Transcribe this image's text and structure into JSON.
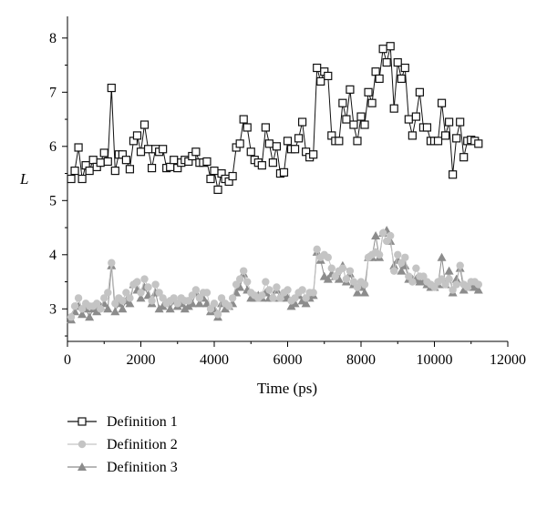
{
  "chart_data": {
    "type": "line",
    "xlabel": "Time (ps)",
    "ylabel": "L",
    "xlim": [
      0,
      12000
    ],
    "ylim": [
      2.4,
      8.4
    ],
    "xticks": [
      0,
      2000,
      4000,
      6000,
      8000,
      10000,
      12000
    ],
    "yticks": [
      3,
      4,
      5,
      6,
      7,
      8
    ],
    "grid": false,
    "legend_position": "bottom-left",
    "x": [
      100,
      200,
      300,
      400,
      500,
      600,
      700,
      800,
      900,
      1000,
      1100,
      1200,
      1300,
      1400,
      1500,
      1600,
      1700,
      1800,
      1900,
      2000,
      2100,
      2200,
      2300,
      2400,
      2500,
      2600,
      2700,
      2800,
      2900,
      3000,
      3100,
      3200,
      3300,
      3400,
      3500,
      3600,
      3700,
      3800,
      3900,
      4000,
      4100,
      4200,
      4300,
      4400,
      4500,
      4600,
      4700,
      4800,
      4900,
      5000,
      5100,
      5200,
      5300,
      5400,
      5500,
      5600,
      5700,
      5800,
      5900,
      6000,
      6100,
      6200,
      6300,
      6400,
      6500,
      6600,
      6700,
      6800,
      6900,
      7000,
      7100,
      7200,
      7300,
      7400,
      7500,
      7600,
      7700,
      7800,
      7900,
      8000,
      8100,
      8200,
      8300,
      8400,
      8500,
      8600,
      8700,
      8800,
      8900,
      9000,
      9100,
      9200,
      9300,
      9400,
      9500,
      9600,
      9700,
      9800,
      9900,
      10000,
      10100,
      10200,
      10300,
      10400,
      10500,
      10600,
      10700,
      10800,
      10900,
      11000,
      11100,
      11200
    ],
    "series": [
      {
        "name": "Definition 1",
        "color": "#111111",
        "marker": "open-square",
        "values": [
          5.4,
          5.55,
          5.98,
          5.4,
          5.65,
          5.55,
          5.75,
          5.62,
          5.7,
          5.88,
          5.72,
          7.08,
          5.55,
          5.85,
          5.85,
          5.75,
          5.58,
          6.1,
          6.2,
          5.9,
          6.4,
          5.95,
          5.6,
          5.95,
          5.9,
          5.95,
          5.6,
          5.62,
          5.75,
          5.6,
          5.7,
          5.75,
          5.72,
          5.82,
          5.9,
          5.7,
          5.7,
          5.72,
          5.4,
          5.55,
          5.2,
          5.5,
          5.4,
          5.35,
          5.45,
          5.98,
          6.05,
          6.5,
          6.35,
          5.9,
          5.75,
          5.7,
          5.65,
          6.35,
          6.05,
          5.7,
          6.0,
          5.5,
          5.52,
          6.1,
          5.95,
          5.95,
          6.15,
          6.45,
          5.9,
          5.8,
          5.85,
          7.45,
          7.2,
          7.38,
          7.3,
          6.2,
          6.1,
          6.1,
          6.8,
          6.5,
          7.05,
          6.4,
          6.1,
          6.55,
          6.4,
          7.0,
          6.8,
          7.38,
          7.25,
          7.8,
          7.55,
          7.85,
          6.7,
          7.55,
          7.25,
          7.45,
          6.5,
          6.2,
          6.55,
          7.0,
          6.35,
          6.35,
          6.1,
          6.1,
          6.1,
          6.8,
          6.2,
          6.45,
          5.48,
          6.15,
          6.45,
          5.8,
          6.1,
          6.12,
          6.1,
          6.05
        ]
      },
      {
        "name": "Definition 2",
        "color": "#c4c4c4",
        "marker": "circle",
        "values": [
          2.85,
          3.05,
          3.2,
          3.0,
          3.1,
          3.05,
          3.05,
          3.1,
          3.0,
          3.2,
          3.3,
          3.85,
          3.1,
          3.2,
          3.15,
          3.3,
          3.2,
          3.45,
          3.5,
          3.3,
          3.55,
          3.4,
          3.15,
          3.45,
          3.3,
          3.2,
          3.1,
          3.15,
          3.2,
          3.1,
          3.2,
          3.15,
          3.15,
          3.25,
          3.35,
          3.2,
          3.3,
          3.3,
          3.0,
          3.1,
          2.9,
          3.2,
          3.1,
          3.05,
          3.2,
          3.45,
          3.55,
          3.7,
          3.5,
          3.3,
          3.25,
          3.2,
          3.25,
          3.5,
          3.35,
          3.2,
          3.4,
          3.2,
          3.3,
          3.35,
          3.15,
          3.2,
          3.3,
          3.35,
          3.2,
          3.3,
          3.3,
          4.1,
          3.95,
          4.0,
          3.95,
          3.75,
          3.6,
          3.7,
          3.75,
          3.55,
          3.7,
          3.5,
          3.4,
          3.5,
          3.45,
          3.95,
          4.0,
          4.05,
          4.0,
          4.4,
          4.25,
          4.35,
          3.7,
          4.0,
          3.85,
          3.95,
          3.6,
          3.5,
          3.75,
          3.6,
          3.6,
          3.5,
          3.45,
          3.4,
          3.5,
          3.55,
          3.45,
          3.55,
          3.35,
          3.45,
          3.8,
          3.45,
          3.4,
          3.5,
          3.5,
          3.45
        ]
      },
      {
        "name": "Definition 3",
        "color": "#8c8c8c",
        "marker": "triangle",
        "values": [
          2.8,
          2.95,
          3.05,
          2.9,
          3.0,
          2.85,
          3.0,
          2.95,
          3.05,
          3.1,
          3.0,
          3.8,
          2.95,
          3.1,
          3.0,
          3.15,
          3.1,
          3.45,
          3.35,
          3.2,
          3.4,
          3.25,
          3.1,
          3.3,
          3.0,
          3.05,
          3.1,
          3.0,
          3.15,
          3.05,
          3.1,
          3.0,
          3.05,
          3.1,
          3.3,
          3.1,
          3.2,
          3.1,
          2.95,
          3.0,
          2.85,
          3.1,
          3.0,
          3.05,
          3.1,
          3.3,
          3.4,
          3.65,
          3.35,
          3.2,
          3.2,
          3.25,
          3.2,
          3.3,
          3.2,
          3.2,
          3.35,
          3.2,
          3.25,
          3.2,
          3.05,
          3.1,
          3.25,
          3.15,
          3.1,
          3.2,
          3.25,
          4.05,
          3.9,
          3.6,
          3.55,
          3.65,
          3.6,
          3.55,
          3.8,
          3.5,
          3.65,
          3.45,
          3.3,
          3.4,
          3.3,
          3.95,
          3.95,
          4.35,
          3.95,
          4.4,
          4.45,
          4.25,
          3.8,
          3.9,
          3.7,
          3.8,
          3.55,
          3.55,
          3.55,
          3.5,
          3.5,
          3.45,
          3.4,
          3.4,
          3.45,
          3.95,
          3.45,
          3.7,
          3.3,
          3.55,
          3.75,
          3.35,
          3.4,
          3.45,
          3.4,
          3.35
        ]
      }
    ]
  }
}
